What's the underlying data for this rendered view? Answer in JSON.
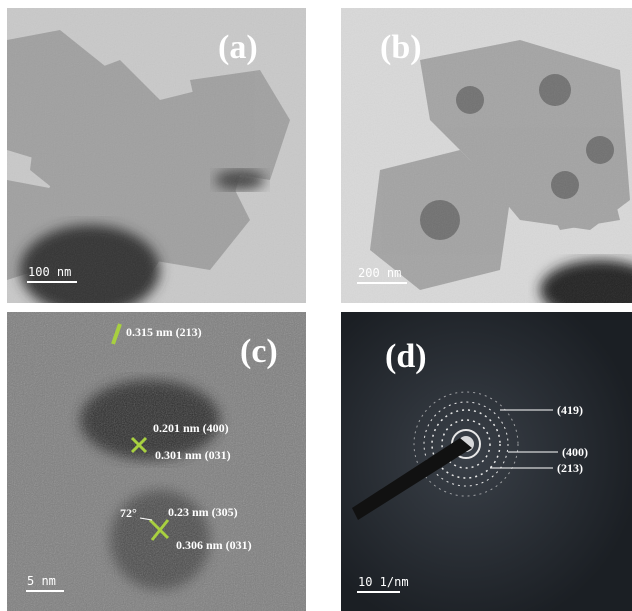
{
  "panels": [
    {
      "label": "(a)",
      "scale_bar": "100 nm"
    },
    {
      "label": "(b)",
      "scale_bar": "200 nm"
    },
    {
      "label": "(c)",
      "scale_bar": "5 nm",
      "annotations": [
        "0.315 nm (213)",
        "0.201 nm (400)",
        "0.301 nm (031)",
        "72°",
        "0.23 nm (305)",
        "0.306 nm (031)"
      ]
    },
    {
      "label": "(d)",
      "scale_bar": "10 1/nm",
      "annotations": [
        "(419)",
        "(400)",
        "(213)"
      ]
    }
  ]
}
